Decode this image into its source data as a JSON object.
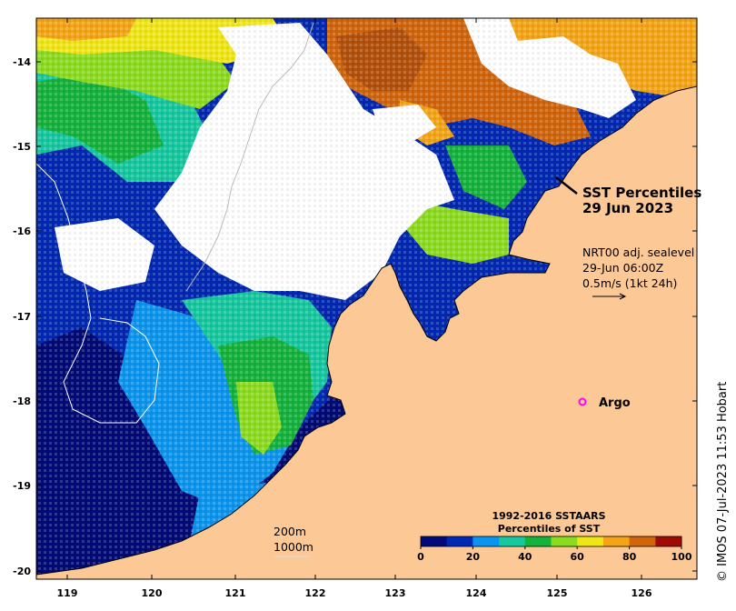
{
  "map": {
    "title_line1": "SST Percentiles",
    "title_line2": "29 Jun 2023",
    "current_info": [
      "NRT00 adj. sealevel",
      "29-Jun 06:00Z",
      "0.5m/s (1kt 24h)"
    ],
    "argo_label": "Argo",
    "depth_contours": [
      "200m",
      "1000m"
    ],
    "credit": "© IMOS 07-Jul-2023 11:53 Hobart",
    "y_ticks": [
      "-14",
      "-15",
      "-16",
      "-17",
      "-18",
      "-19",
      "-20"
    ],
    "x_ticks": [
      "119",
      "120",
      "121",
      "122",
      "123",
      "124",
      "125",
      "126"
    ],
    "land_color": "#fcc896",
    "cloud_color": "#ffffff",
    "argo_color": "#ff00ff"
  },
  "colorbar": {
    "title_line1": "1992-2016 SSTAARS",
    "title_line2": "Percentiles of SST",
    "tick_labels": [
      "0",
      "20",
      "40",
      "60",
      "80",
      "100"
    ],
    "colors": [
      "#000a78",
      "#0028b4",
      "#0a96f0",
      "#14c8a0",
      "#14b43c",
      "#8cdc1e",
      "#f0e614",
      "#f5a514",
      "#d2640a",
      "#a00a00"
    ]
  }
}
